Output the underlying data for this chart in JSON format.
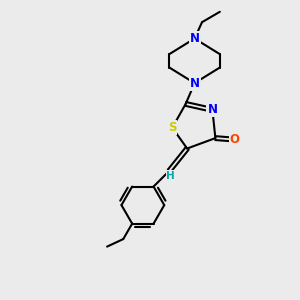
{
  "bg_color": "#ebebeb",
  "bond_color": "#000000",
  "bond_width": 1.5,
  "atom_colors": {
    "N": "#0000ff",
    "S": "#cccc00",
    "O": "#ff4400",
    "H": "#00aaaa",
    "C": "#000000"
  },
  "font_size_atom": 8.5
}
